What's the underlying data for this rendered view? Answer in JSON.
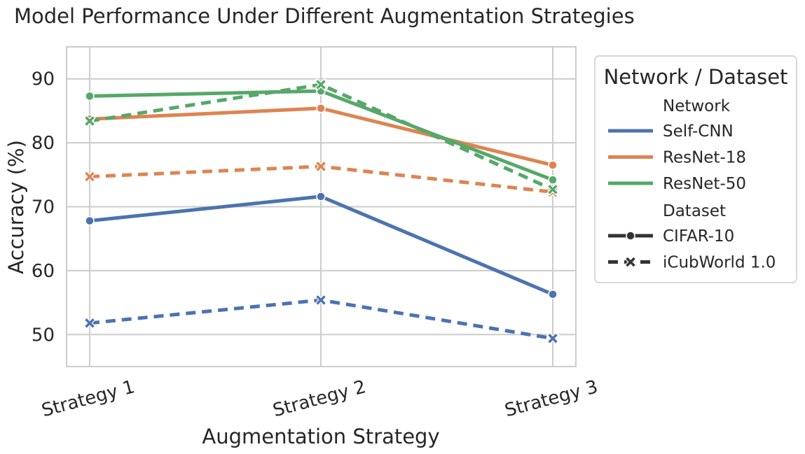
{
  "chart_data": {
    "type": "line",
    "title": "Model Performance Under Different Augmentation Strategies",
    "xlabel": "Augmentation Strategy",
    "ylabel": "Accuracy (%)",
    "categories": [
      "Strategy 1",
      "Strategy 2",
      "Strategy 3"
    ],
    "ylim": [
      45,
      95
    ],
    "yticks": [
      50,
      60,
      70,
      80,
      90
    ],
    "grid": true,
    "legend": {
      "title": "Network / Dataset",
      "placement": "outside-right",
      "network_heading": "Network",
      "dataset_heading": "Dataset",
      "networks": [
        {
          "name": "Self-CNN",
          "color": "#4c72b0"
        },
        {
          "name": "ResNet-18",
          "color": "#dd8452"
        },
        {
          "name": "ResNet-50",
          "color": "#55a868"
        }
      ],
      "datasets": [
        {
          "name": "CIFAR-10",
          "style": "solid",
          "marker": "circle"
        },
        {
          "name": "iCubWorld 1.0",
          "style": "dashed",
          "marker": "x"
        }
      ]
    },
    "series": [
      {
        "network": "Self-CNN",
        "dataset": "CIFAR-10",
        "color": "#4c72b0",
        "style": "solid",
        "marker": "circle",
        "values": [
          67.8,
          71.6,
          56.3
        ]
      },
      {
        "network": "Self-CNN",
        "dataset": "iCubWorld 1.0",
        "color": "#4c72b0",
        "style": "dashed",
        "marker": "x",
        "values": [
          51.8,
          55.4,
          49.4
        ]
      },
      {
        "network": "ResNet-18",
        "dataset": "CIFAR-10",
        "color": "#dd8452",
        "style": "solid",
        "marker": "circle",
        "values": [
          83.7,
          85.4,
          76.5
        ]
      },
      {
        "network": "ResNet-18",
        "dataset": "iCubWorld 1.0",
        "color": "#dd8452",
        "style": "dashed",
        "marker": "x",
        "values": [
          74.7,
          76.3,
          72.3
        ]
      },
      {
        "network": "ResNet-50",
        "dataset": "CIFAR-10",
        "color": "#55a868",
        "style": "solid",
        "marker": "circle",
        "values": [
          87.3,
          88.1,
          74.2
        ]
      },
      {
        "network": "ResNet-50",
        "dataset": "iCubWorld 1.0",
        "color": "#55a868",
        "style": "dashed",
        "marker": "x",
        "values": [
          83.4,
          89.1,
          72.7
        ]
      }
    ]
  }
}
